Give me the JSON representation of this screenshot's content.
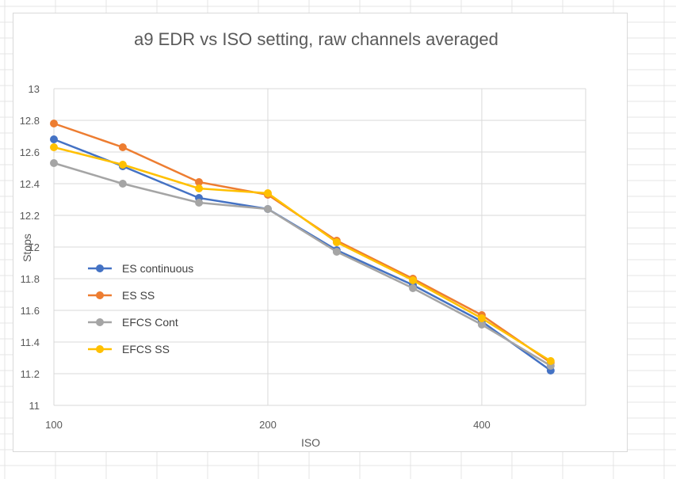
{
  "chart_data": {
    "type": "line",
    "title": "a9 EDR vs ISO setting, raw channels averaged",
    "xlabel": "ISO",
    "ylabel": "Stops",
    "x_scale": "log2",
    "xlim": [
      100,
      560
    ],
    "ylim": [
      11,
      13
    ],
    "y_ticks": [
      11,
      11.2,
      11.4,
      11.6,
      11.8,
      12,
      12.2,
      12.4,
      12.6,
      12.8,
      13
    ],
    "y_tick_labels": [
      "11",
      "11.2",
      "11.4",
      "11.6",
      "11.8",
      "12",
      "12.2",
      "12.4",
      "12.6",
      "12.8",
      "13"
    ],
    "x_ticks": [
      100,
      200,
      400
    ],
    "x_tick_labels": [
      "100",
      "200",
      "400"
    ],
    "grid": true,
    "legend_position": "left",
    "x": [
      100,
      125,
      160,
      200,
      250,
      320,
      400,
      500
    ],
    "series": [
      {
        "name": "ES continuous",
        "color": "#4472C4",
        "values": [
          12.68,
          12.51,
          12.31,
          12.24,
          11.98,
          11.76,
          11.53,
          11.22
        ]
      },
      {
        "name": "ES SS",
        "color": "#ED7D31",
        "values": [
          12.78,
          12.63,
          12.41,
          12.33,
          12.04,
          11.8,
          11.57,
          11.27
        ]
      },
      {
        "name": "EFCS Cont",
        "color": "#A5A5A5",
        "values": [
          12.53,
          12.4,
          12.28,
          12.24,
          11.97,
          11.74,
          11.51,
          11.25
        ]
      },
      {
        "name": "EFCS SS",
        "color": "#FFC000",
        "values": [
          12.63,
          12.52,
          12.37,
          12.34,
          12.03,
          11.79,
          11.55,
          11.28
        ]
      }
    ]
  }
}
